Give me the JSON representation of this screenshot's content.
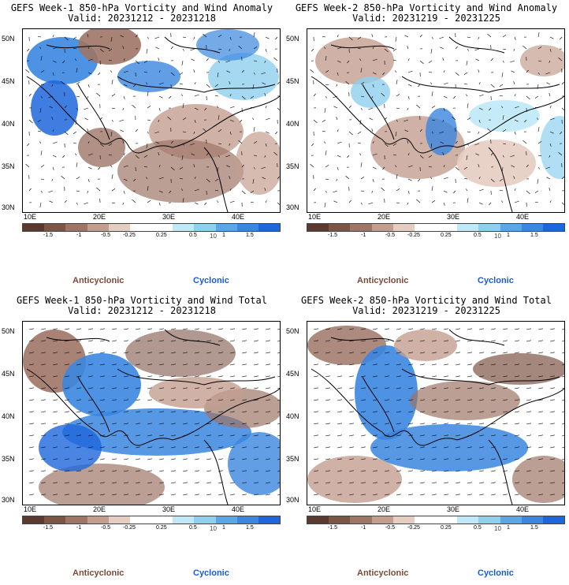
{
  "panels": [
    {
      "line1": "GEFS Week-1 850-hPa Vorticity and Wind Anomaly",
      "line2": "Valid: 20231212 - 20231218",
      "kind": "anomaly"
    },
    {
      "line1": "GEFS Week-2 850-hPa Vorticity and Wind Anomaly",
      "line2": "Valid: 20231219 - 20231225",
      "kind": "anomaly"
    },
    {
      "line1": "GEFS Week-1 850-hPa Vorticity and Wind Total",
      "line2": "Valid: 20231212 - 20231218",
      "kind": "total"
    },
    {
      "line1": "GEFS Week-2 850-hPa Vorticity and Wind Total",
      "line2": "Valid: 20231219 - 20231225",
      "kind": "total"
    }
  ],
  "axes": {
    "lat_labels": [
      "50N",
      "45N",
      "40N",
      "35N",
      "30N"
    ],
    "lon_labels": [
      "10E",
      "20E",
      "30E",
      "40E"
    ]
  },
  "colorbar": {
    "labels": [
      "-1.5",
      "-1",
      "-0.5",
      "-0.25",
      "0.25",
      "0.5",
      "1",
      "1.5"
    ],
    "unit": "10",
    "colors": [
      "#5a3a2e",
      "#7d5547",
      "#9e7566",
      "#c39e8f",
      "#e5cdc2",
      "#ffffff",
      "#ffffff",
      "#bfe9f7",
      "#8fd0ef",
      "#5aa6e6",
      "#3a86e0",
      "#1e66dc"
    ]
  },
  "legend": {
    "anticyclonic": "Anticyclonic",
    "cyclonic": "Cyclonic"
  }
}
